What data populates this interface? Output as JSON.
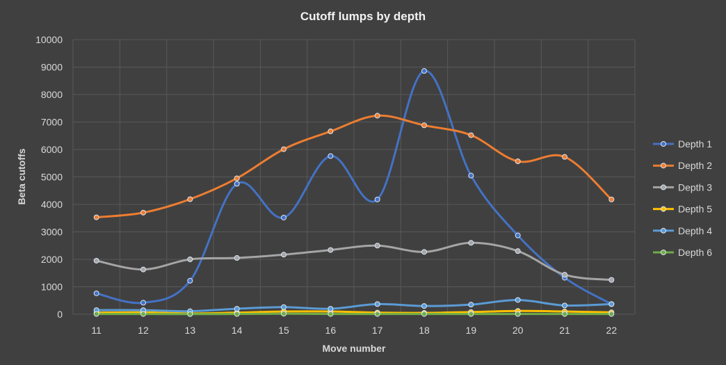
{
  "chart_data": {
    "type": "line",
    "title": "Cutoff lumps by depth",
    "xlabel": "Move number",
    "ylabel": "Beta cutoffs",
    "categories": [
      "11",
      "12",
      "13",
      "14",
      "15",
      "16",
      "17",
      "18",
      "19",
      "20",
      "21",
      "22"
    ],
    "ylim": [
      0,
      10000
    ],
    "yticks": [
      0,
      1000,
      2000,
      3000,
      4000,
      5000,
      6000,
      7000,
      8000,
      9000,
      10000
    ],
    "grid": true,
    "legend_position": "right",
    "series": [
      {
        "name": "Depth 1",
        "color": "#4472c4",
        "values": [
          760,
          420,
          1220,
          4750,
          3520,
          5760,
          4180,
          8860,
          5050,
          2870,
          1330,
          370
        ]
      },
      {
        "name": "Depth 2",
        "color": "#ed7d31",
        "values": [
          3530,
          3700,
          4190,
          4950,
          6010,
          6660,
          7230,
          6880,
          6520,
          5570,
          5730,
          4180
        ]
      },
      {
        "name": "Depth 3",
        "color": "#a5a5a5",
        "values": [
          1950,
          1630,
          2000,
          2050,
          2170,
          2340,
          2500,
          2270,
          2600,
          2300,
          1440,
          1250
        ]
      },
      {
        "name": "Depth 5",
        "color": "#ffc000",
        "values": [
          60,
          70,
          30,
          60,
          100,
          100,
          60,
          50,
          80,
          120,
          100,
          70
        ]
      },
      {
        "name": "Depth 4",
        "color": "#5b9bd5",
        "values": [
          150,
          150,
          110,
          200,
          260,
          200,
          370,
          300,
          350,
          520,
          320,
          370
        ]
      },
      {
        "name": "Depth 6",
        "color": "#70ad47",
        "values": [
          10,
          10,
          5,
          10,
          20,
          10,
          10,
          10,
          10,
          10,
          10,
          10
        ]
      }
    ]
  }
}
